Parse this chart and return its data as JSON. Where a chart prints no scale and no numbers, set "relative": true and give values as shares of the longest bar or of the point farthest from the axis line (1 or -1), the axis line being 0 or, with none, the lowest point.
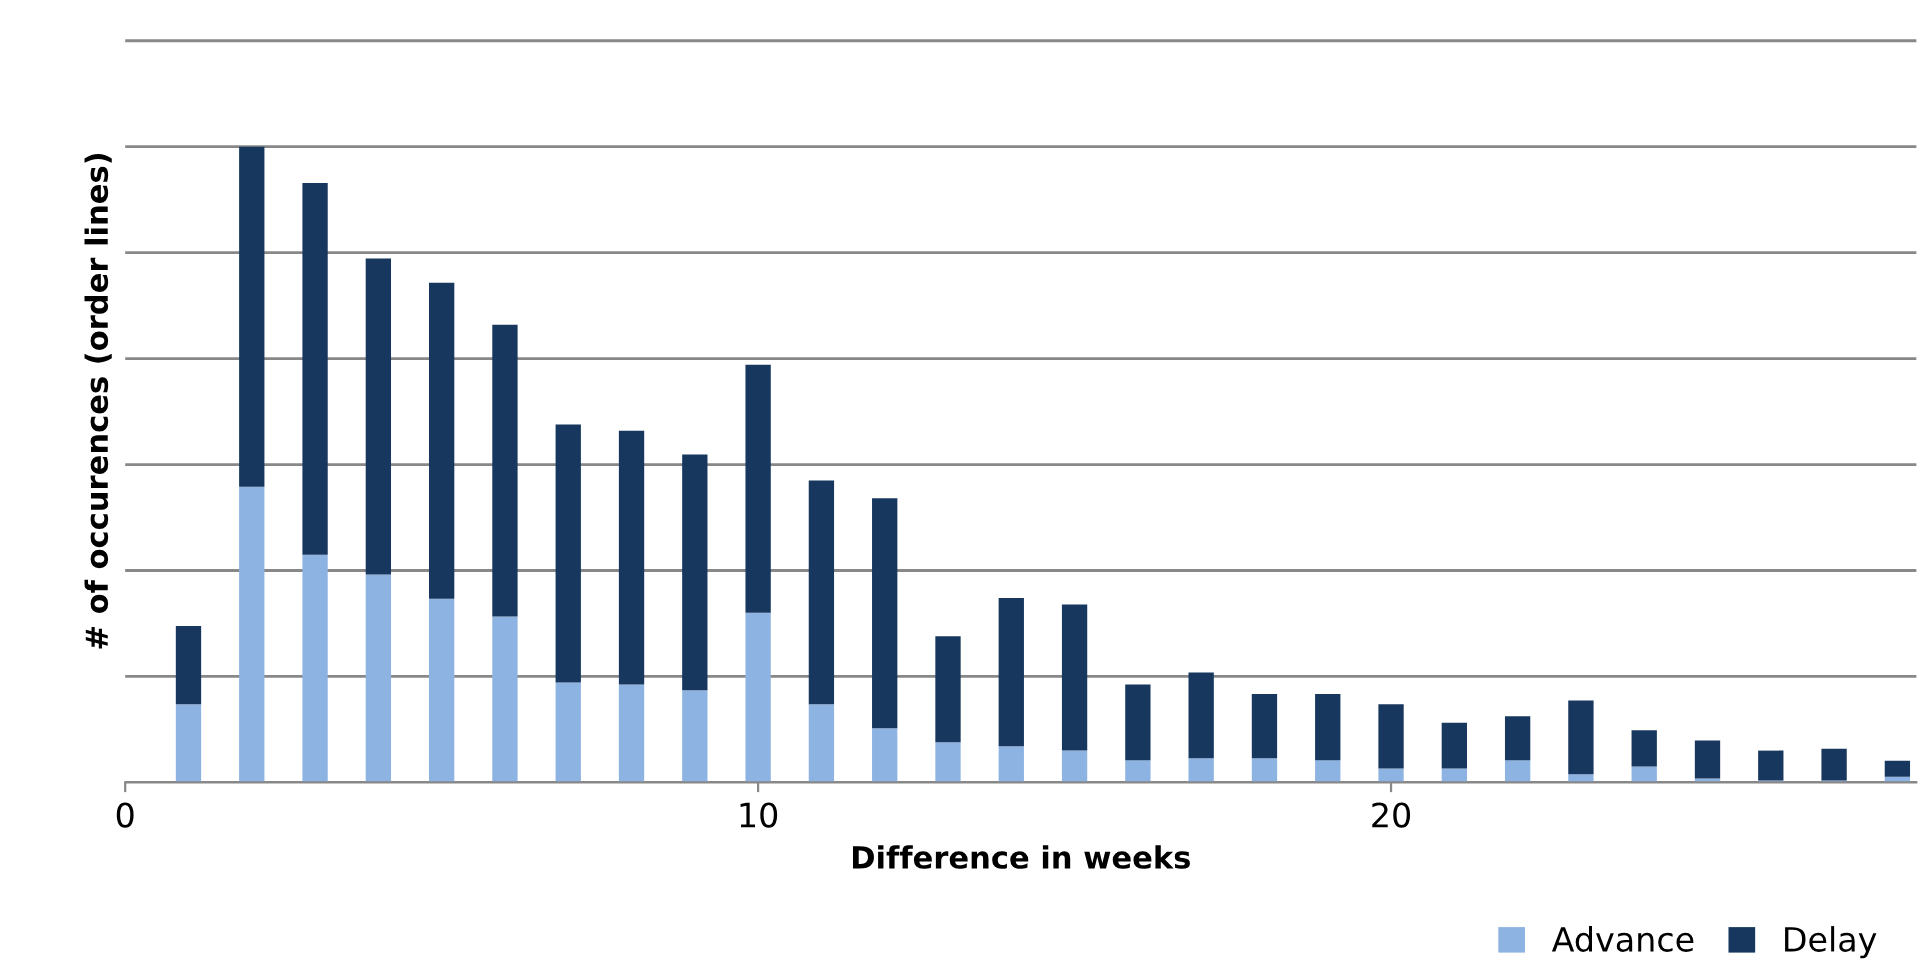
{
  "chart_data": {
    "type": "bar",
    "stacked": true,
    "relative": true,
    "xlabel": "Difference in weeks",
    "ylabel": "# of occurences (order lines)",
    "x": [
      1,
      2,
      3,
      4,
      5,
      6,
      7,
      8,
      9,
      10,
      11,
      12,
      13,
      14,
      15,
      16,
      17,
      18,
      19,
      20,
      21,
      22,
      23,
      24,
      25,
      26,
      27,
      28
    ],
    "xlim": [
      0,
      28.3
    ],
    "xticks": [
      0,
      10,
      20
    ],
    "grid": "y",
    "legend": "bottom right",
    "series": [
      {
        "name": "Advance",
        "color": "#8db3e2",
        "values": [
          0.123,
          0.465,
          0.358,
          0.327,
          0.289,
          0.261,
          0.157,
          0.154,
          0.145,
          0.267,
          0.123,
          0.085,
          0.063,
          0.057,
          0.05,
          0.035,
          0.038,
          0.038,
          0.035,
          0.022,
          0.022,
          0.035,
          0.013,
          0.025,
          0.006,
          0.003,
          0.003,
          0.009
        ]
      },
      {
        "name": "Delay",
        "color": "#17375e",
        "values": [
          0.123,
          0.535,
          0.585,
          0.497,
          0.497,
          0.459,
          0.406,
          0.399,
          0.371,
          0.39,
          0.352,
          0.362,
          0.167,
          0.233,
          0.23,
          0.119,
          0.135,
          0.101,
          0.104,
          0.101,
          0.072,
          0.069,
          0.116,
          0.057,
          0.06,
          0.047,
          0.05,
          0.025
        ]
      }
    ]
  }
}
